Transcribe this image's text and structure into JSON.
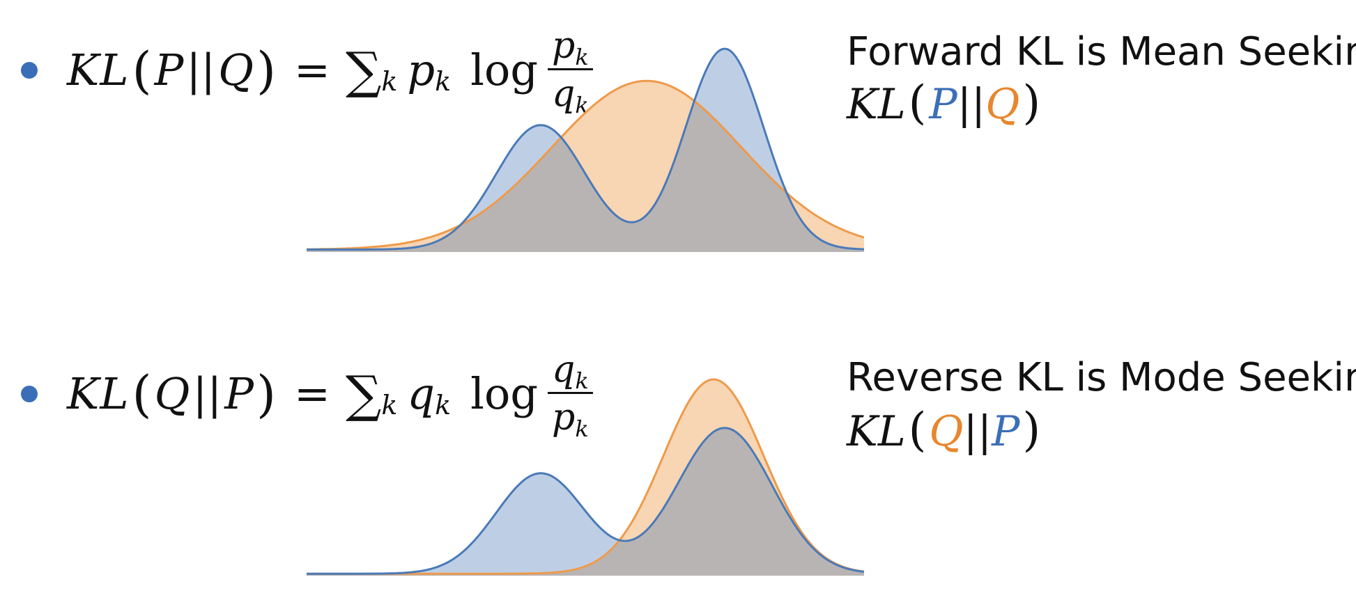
{
  "formulas": [
    {
      "fn": "KL",
      "a": "P",
      "b": "Q",
      "sum_sub": "k",
      "weight": "p",
      "num": "p",
      "den": "q",
      "idx": "k"
    },
    {
      "fn": "KL",
      "a": "Q",
      "b": "P",
      "sum_sub": "k",
      "weight": "q",
      "num": "q",
      "den": "p",
      "idx": "k"
    }
  ],
  "labels": [
    {
      "title": "Forward KL is Mean Seeking",
      "fn": "KL",
      "a": "P",
      "b": "Q",
      "a_color": "#3a6fb8",
      "b_color": "#e8862e"
    },
    {
      "title": "Reverse KL is Mode Seeking",
      "fn": "KL",
      "a": "Q",
      "b": "P",
      "a_color": "#e8862e",
      "b_color": "#3a6fb8"
    }
  ],
  "colors": {
    "p": "#4a7ab8",
    "q": "#ee9a4a",
    "bullet": "#3a6fb8"
  },
  "curves": [
    {
      "x_range": [
        0,
        100
      ],
      "p": [
        {
          "mu": 42,
          "sigma": 8,
          "w": 0.62
        },
        {
          "mu": 75,
          "sigma": 7,
          "w": 1.0
        }
      ],
      "q": [
        {
          "mu": 61,
          "sigma": 17,
          "w": 0.84
        }
      ]
    },
    {
      "x_range": [
        0,
        100
      ],
      "p": [
        {
          "mu": 42,
          "sigma": 8,
          "w": 0.62
        },
        {
          "mu": 75,
          "sigma": 8.5,
          "w": 0.9
        }
      ],
      "q": [
        {
          "mu": 73,
          "sigma": 9,
          "w": 1.2
        }
      ]
    }
  ]
}
